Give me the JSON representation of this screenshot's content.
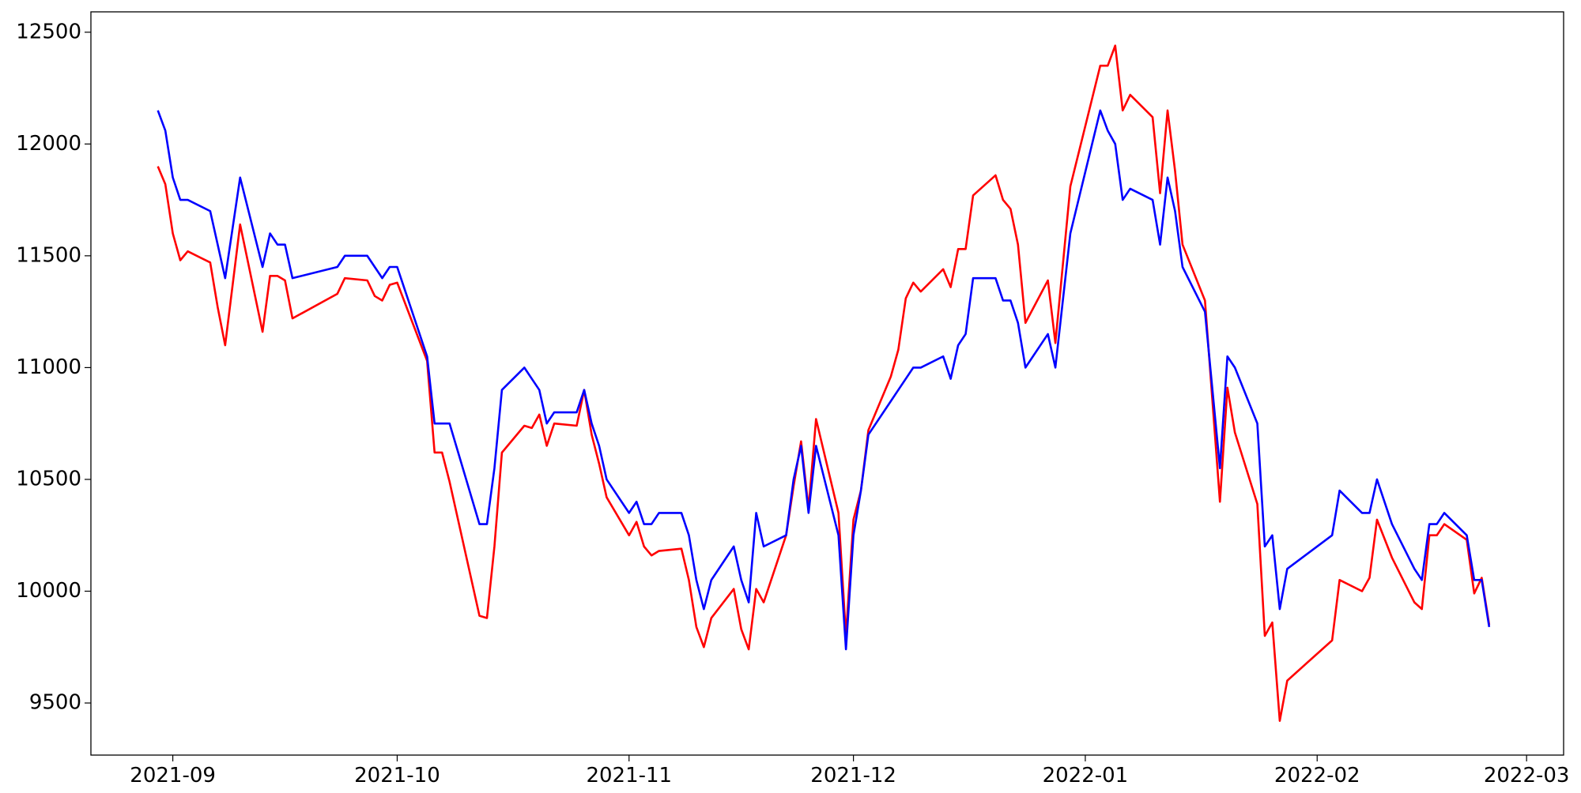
{
  "chart_data": {
    "type": "line",
    "x": [
      18869,
      18870,
      18871,
      18872,
      18873,
      18876,
      18877,
      18878,
      18880,
      18883,
      18884,
      18885,
      18886,
      18887,
      18893,
      18894,
      18897,
      18898,
      18899,
      18900,
      18901,
      18905,
      18906,
      18907,
      18908,
      18912,
      18913,
      18914,
      18915,
      18918,
      18919,
      18920,
      18921,
      18922,
      18925,
      18926,
      18927,
      18928,
      18929,
      18932,
      18933,
      18934,
      18935,
      18936,
      18939,
      18940,
      18941,
      18942,
      18943,
      18946,
      18947,
      18948,
      18949,
      18950,
      18953,
      18954,
      18955,
      18956,
      18957,
      18960,
      18961,
      18962,
      18963,
      18964,
      18967,
      18968,
      18969,
      18970,
      18971,
      18974,
      18975,
      18976,
      18977,
      18978,
      18981,
      18982,
      18983,
      18984,
      18985,
      18988,
      18989,
      18991,
      18995,
      18996,
      18997,
      18998,
      18999,
      19002,
      19003,
      19004,
      19005,
      19006,
      19009,
      19011,
      19012,
      19013,
      19016,
      19017,
      19018,
      19019,
      19020,
      19026,
      19027,
      19030,
      19031,
      19032,
      19034,
      19037,
      19038,
      19039,
      19040,
      19041,
      19044,
      19045,
      19046,
      19047
    ],
    "series": [
      {
        "color": "#ff0000",
        "values": [
          11900,
          11820,
          11600,
          11480,
          11520,
          11470,
          11270,
          11100,
          11640,
          11160,
          11410,
          11410,
          11390,
          11220,
          11330,
          11400,
          11390,
          11320,
          11300,
          11370,
          11380,
          11030,
          10620,
          10620,
          10490,
          9890,
          9880,
          10200,
          10620,
          10740,
          10730,
          10790,
          10650,
          10750,
          10740,
          10900,
          10700,
          10570,
          10420,
          10250,
          10310,
          10200,
          10160,
          10180,
          10190,
          10050,
          9840,
          9750,
          9880,
          10010,
          9830,
          9740,
          10010,
          9950,
          10250,
          10470,
          10670,
          10370,
          10770,
          10350,
          9800,
          10320,
          10450,
          10720,
          10960,
          11080,
          11310,
          11380,
          11340,
          11440,
          11360,
          11530,
          11530,
          11770,
          11860,
          11750,
          11710,
          11550,
          11200,
          11390,
          11110,
          11810,
          12350,
          12350,
          12440,
          12150,
          12220,
          12120,
          11780,
          12150,
          11880,
          11550,
          11300,
          10400,
          10910,
          10710,
          10390,
          9800,
          9860,
          9420,
          9600,
          9780,
          10050,
          10000,
          10060,
          10320,
          10150,
          9950,
          9920,
          10250,
          10250,
          10300,
          10230,
          9990,
          10060,
          9850
        ]
      },
      {
        "color": "#0000ff",
        "values": [
          12150,
          12060,
          11850,
          11750,
          11750,
          11700,
          11550,
          11400,
          11850,
          11450,
          11600,
          11550,
          11550,
          11400,
          11450,
          11500,
          11500,
          11450,
          11400,
          11450,
          11450,
          11050,
          10750,
          10750,
          10750,
          10300,
          10300,
          10550,
          10900,
          11000,
          10950,
          10900,
          10750,
          10800,
          10800,
          10900,
          10750,
          10650,
          10500,
          10350,
          10400,
          10300,
          10300,
          10350,
          10350,
          10250,
          10050,
          9920,
          10050,
          10200,
          10050,
          9950,
          10350,
          10200,
          10250,
          10500,
          10650,
          10350,
          10650,
          10250,
          9740,
          10250,
          10450,
          10700,
          10850,
          10900,
          10950,
          11000,
          11000,
          11050,
          10950,
          11100,
          11150,
          11400,
          11400,
          11300,
          11300,
          11200,
          11000,
          11150,
          11000,
          11600,
          12150,
          12060,
          12000,
          11750,
          11800,
          11750,
          11550,
          11850,
          11700,
          11450,
          11250,
          10550,
          11050,
          11000,
          10750,
          10200,
          10250,
          9920,
          10100,
          10250,
          10450,
          10350,
          10350,
          10500,
          10300,
          10100,
          10050,
          10300,
          10300,
          10350,
          10250,
          10050,
          10050,
          9840
        ]
      }
    ],
    "xlim": [
      18860.05,
      19056.95
    ],
    "xticks": [
      {
        "value": 18871,
        "label": "2021-09"
      },
      {
        "value": 18901,
        "label": "2021-10"
      },
      {
        "value": 18932,
        "label": "2021-11"
      },
      {
        "value": 18962,
        "label": "2021-12"
      },
      {
        "value": 18993,
        "label": "2022-01"
      },
      {
        "value": 19024,
        "label": "2022-02"
      },
      {
        "value": 19052,
        "label": "2022-03"
      }
    ],
    "ylim": [
      9267,
      12591
    ],
    "yticks": [
      9500,
      10000,
      10500,
      11000,
      11500,
      12000,
      12500
    ]
  }
}
